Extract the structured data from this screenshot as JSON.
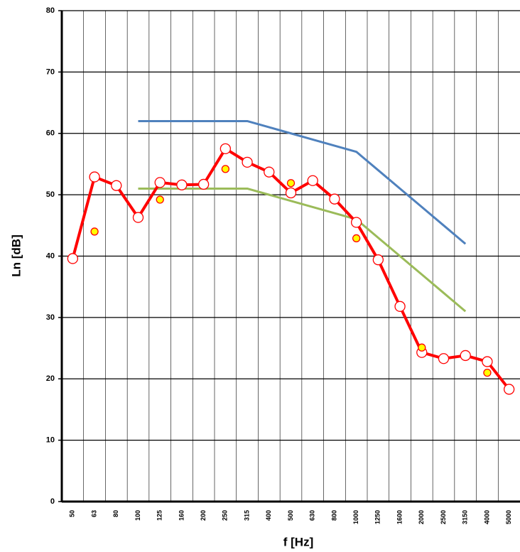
{
  "chart_data": {
    "type": "line",
    "x_label": "f [Hz]",
    "y_label": "Ln [dB]",
    "categories": [
      "50",
      "63",
      "80",
      "100",
      "125",
      "160",
      "200",
      "250",
      "315",
      "400",
      "500",
      "630",
      "800",
      "1000",
      "1250",
      "1600",
      "2000",
      "2500",
      "3150",
      "4000",
      "5000"
    ],
    "ylim": [
      0,
      80
    ],
    "yticks": [
      0,
      10,
      20,
      30,
      40,
      50,
      60,
      70,
      80
    ],
    "grid": true,
    "series": [
      {
        "color": "#4f81bd",
        "line": true,
        "marker": false,
        "values": [
          null,
          null,
          null,
          62,
          62,
          62,
          62,
          62,
          62,
          61,
          60,
          59,
          58,
          57,
          54,
          51,
          48,
          45,
          42,
          null,
          null
        ]
      },
      {
        "color": "#9bbb59",
        "line": true,
        "marker": false,
        "values": [
          null,
          null,
          null,
          51,
          51,
          51,
          51,
          51,
          51,
          50,
          49,
          48,
          47,
          46,
          43,
          40,
          37,
          34,
          31,
          null,
          null
        ]
      },
      {
        "color": "#ff0000",
        "line": true,
        "marker": true,
        "marker_fill": "#ffffff",
        "marker_size": 7,
        "values": [
          39.6,
          52.9,
          51.5,
          46.3,
          52.0,
          51.6,
          51.7,
          57.5,
          55.3,
          53.7,
          50.3,
          52.3,
          49.3,
          45.5,
          39.4,
          31.8,
          24.3,
          23.3,
          23.8,
          22.8,
          18.3
        ]
      },
      {
        "color": "#ff0000",
        "line": false,
        "marker": true,
        "marker_fill": "#ffff00",
        "marker_size": 5,
        "values": [
          null,
          44.0,
          null,
          null,
          49.2,
          null,
          null,
          54.2,
          null,
          null,
          51.9,
          null,
          null,
          42.9,
          null,
          null,
          25.1,
          null,
          null,
          21.0,
          null
        ]
      }
    ]
  }
}
